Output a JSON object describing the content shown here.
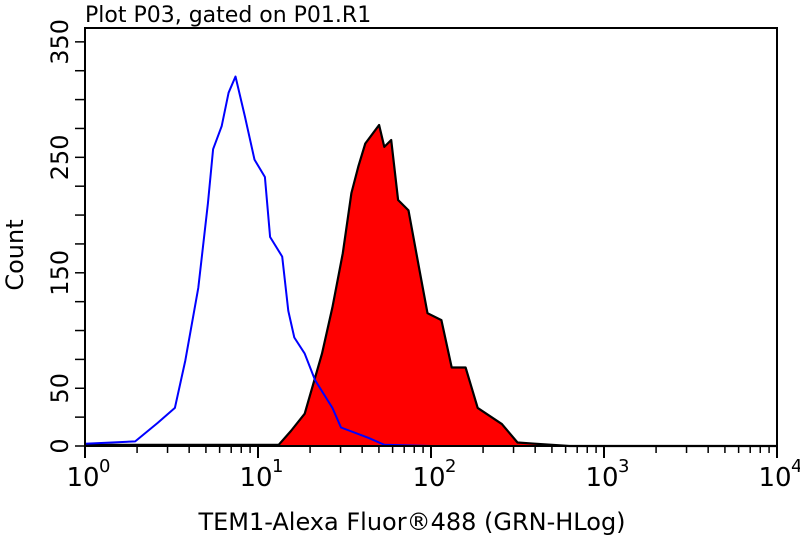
{
  "chart_data": {
    "type": "area",
    "title": "Plot P03, gated on P01.R1",
    "xlabel": "TEM1-Alexa Fluor®488 (GRN-HLog)",
    "ylabel": "Count",
    "xscale": "log",
    "xlim": [
      1,
      10000
    ],
    "ylim": [
      0,
      362
    ],
    "x_ticks": [
      {
        "base": "10",
        "exp": "0",
        "value": 1
      },
      {
        "base": "10",
        "exp": "1",
        "value": 10
      },
      {
        "base": "10",
        "exp": "2",
        "value": 100
      },
      {
        "base": "10",
        "exp": "3",
        "value": 1000
      },
      {
        "base": "10",
        "exp": "4",
        "value": 10000
      }
    ],
    "y_ticks": [
      "0",
      "50",
      "150",
      "250",
      "350"
    ],
    "y_tick_values": [
      0,
      50,
      150,
      250,
      350
    ],
    "y_minor_step": 25,
    "grid": false,
    "series": [
      {
        "style": "outline",
        "color": "#0000ff",
        "points": [
          [
            1,
            2
          ],
          [
            1.95,
            4
          ],
          [
            2.63,
            20
          ],
          [
            3.31,
            33
          ],
          [
            3.8,
            74
          ],
          [
            4.52,
            137
          ],
          [
            5.13,
            210
          ],
          [
            5.5,
            257
          ],
          [
            6.17,
            277
          ],
          [
            6.76,
            306
          ],
          [
            7.41,
            320
          ],
          [
            8.41,
            285
          ],
          [
            9.55,
            248
          ],
          [
            10.96,
            233
          ],
          [
            11.75,
            181
          ],
          [
            13.8,
            164
          ],
          [
            14.96,
            117
          ],
          [
            16.22,
            94
          ],
          [
            18.62,
            80
          ],
          [
            21.38,
            57
          ],
          [
            26.92,
            33
          ],
          [
            30.2,
            16
          ],
          [
            43.65,
            7
          ],
          [
            53.7,
            1
          ],
          [
            100,
            0
          ],
          [
            10000,
            0
          ]
        ]
      },
      {
        "style": "filled",
        "color": "#ff0000",
        "outline": "#000000",
        "points": [
          [
            1,
            1
          ],
          [
            13.18,
            1
          ],
          [
            15.49,
            13
          ],
          [
            18.62,
            28
          ],
          [
            23.44,
            80
          ],
          [
            26.92,
            120
          ],
          [
            30.9,
            167
          ],
          [
            34.67,
            219
          ],
          [
            38.02,
            242
          ],
          [
            41.69,
            262
          ],
          [
            50.12,
            278
          ],
          [
            53.7,
            259
          ],
          [
            58.88,
            265
          ],
          [
            64.57,
            213
          ],
          [
            74.13,
            204
          ],
          [
            85.11,
            155
          ],
          [
            95.5,
            115
          ],
          [
            114.8,
            109
          ],
          [
            131.8,
            68
          ],
          [
            158.5,
            68
          ],
          [
            186.2,
            33
          ],
          [
            257,
            19
          ],
          [
            316.2,
            3
          ],
          [
            398.1,
            2
          ],
          [
            631,
            0
          ],
          [
            10000,
            0
          ]
        ]
      }
    ]
  }
}
